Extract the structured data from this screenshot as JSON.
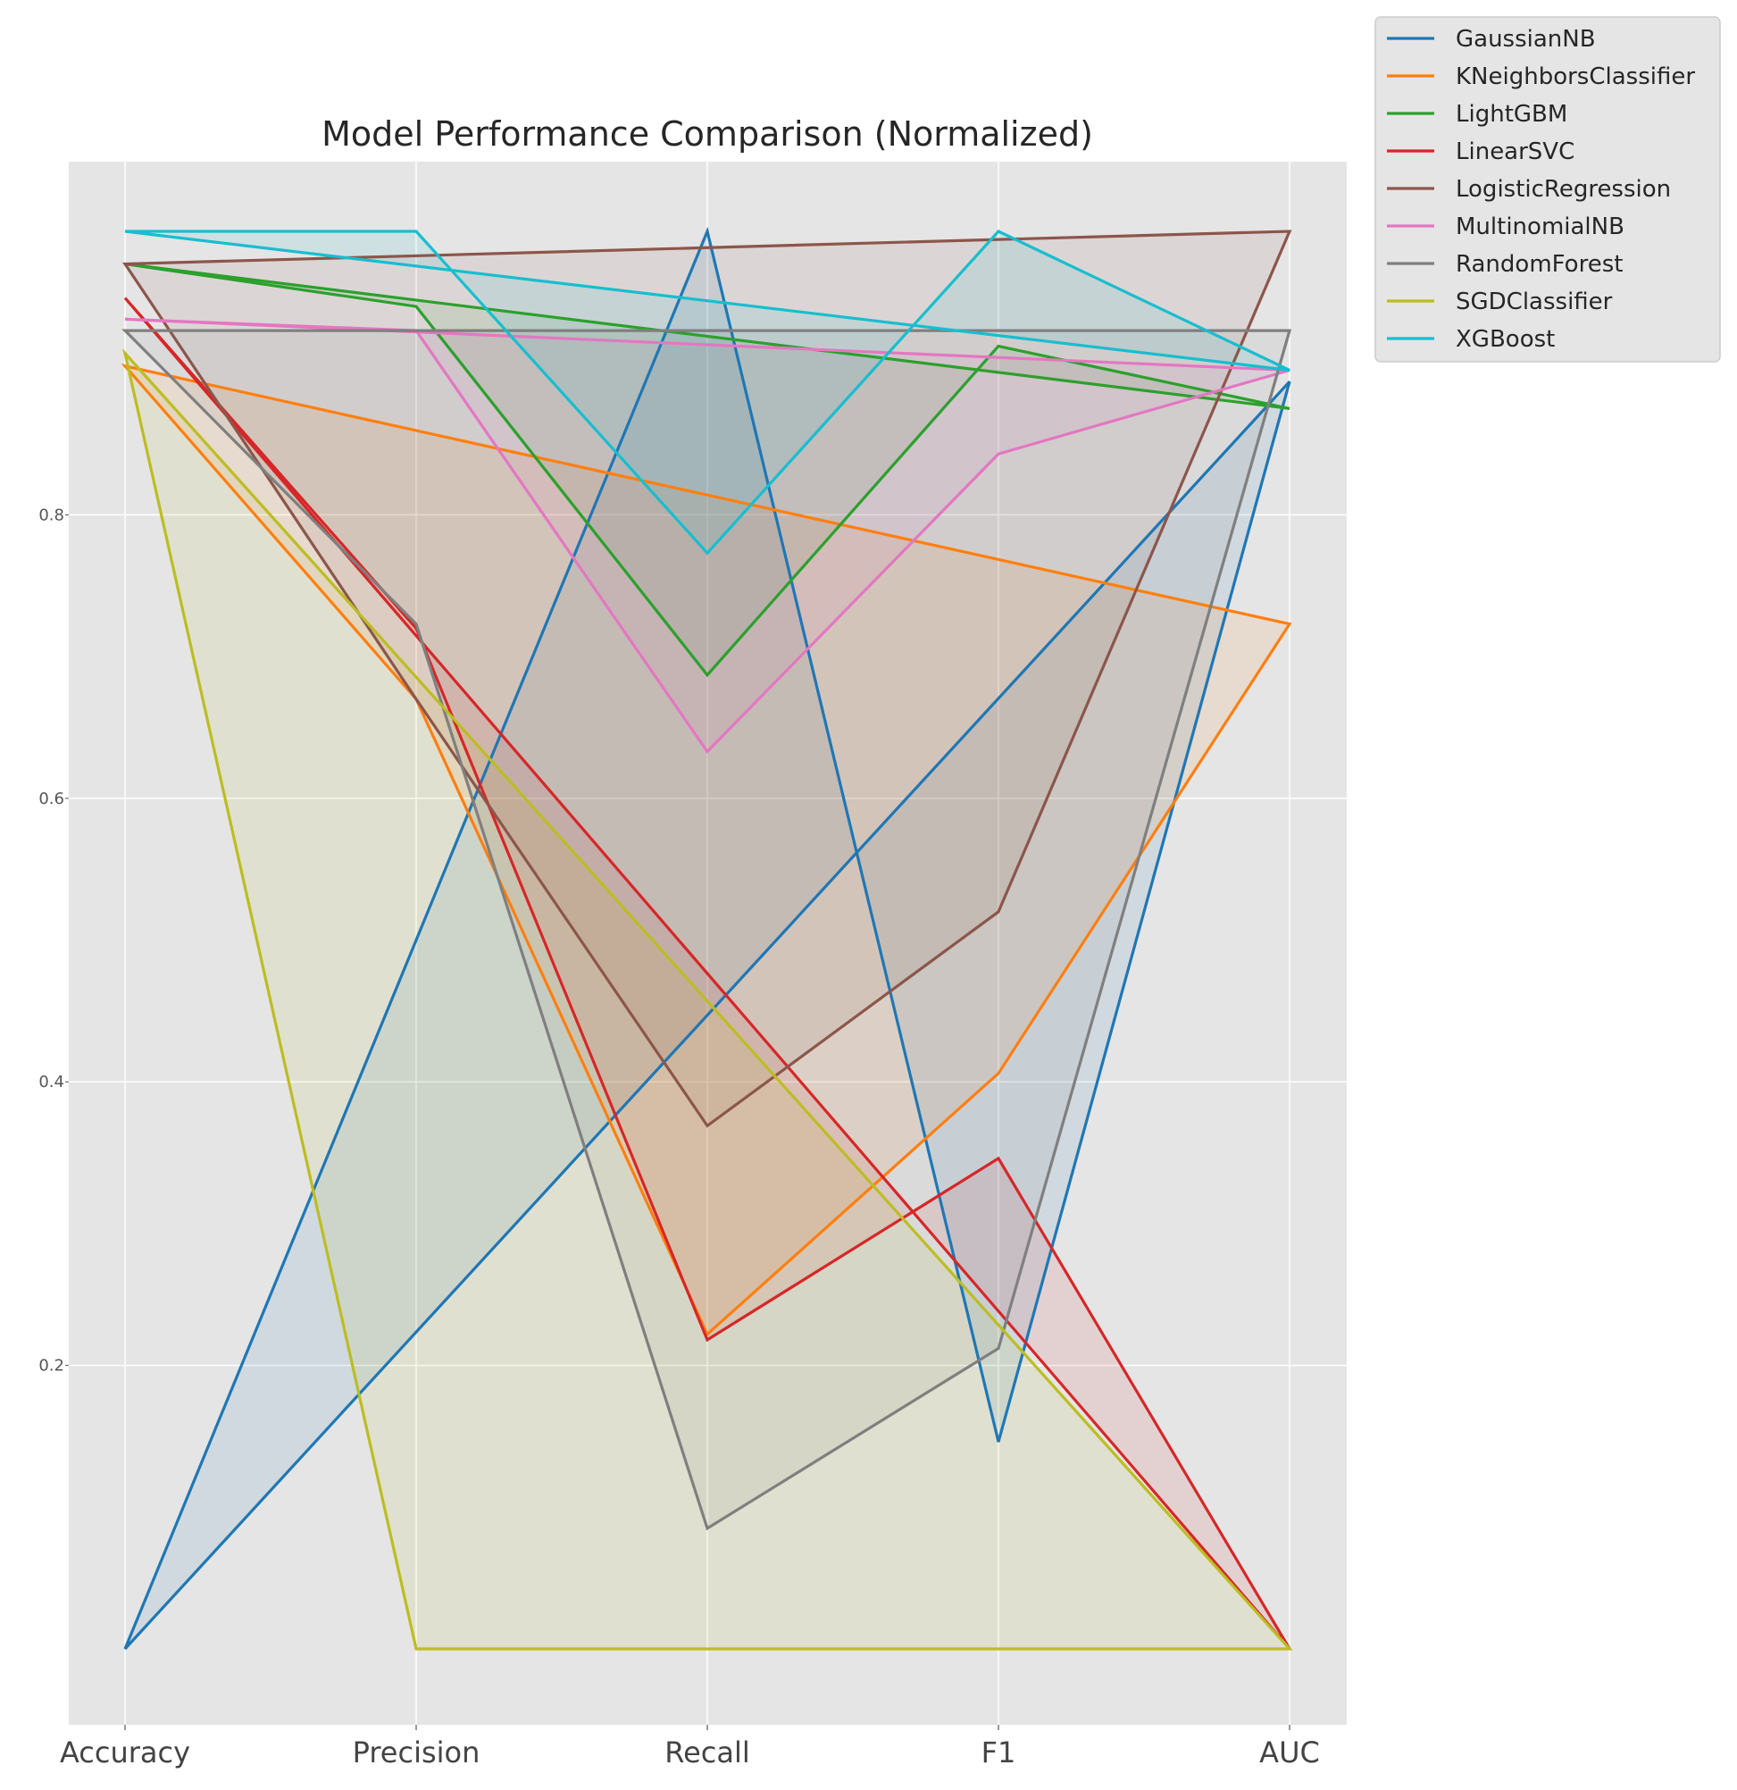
{
  "chart_data": {
    "type": "line",
    "title": "Model Performance Comparison (Normalized)",
    "xlabel": "",
    "ylabel": "",
    "categories": [
      "Accuracy",
      "Precision",
      "Recall",
      "F1",
      "AUC"
    ],
    "yticks": [
      0.2,
      0.4,
      0.6,
      0.8
    ],
    "ylim": [
      -0.05,
      1.05
    ],
    "grid": true,
    "legend_position": "outside-top-right",
    "filled": true,
    "closed_polygons": true,
    "series": [
      {
        "name": "GaussianNB",
        "color": "#1f77b4",
        "values": [
          0.0,
          0.5,
          1.0,
          0.146,
          0.894
        ]
      },
      {
        "name": "KNeighborsClassifier",
        "color": "#ff7f0e",
        "values": [
          0.905,
          0.67,
          0.222,
          0.406,
          0.723
        ]
      },
      {
        "name": "LightGBM",
        "color": "#2ca02c",
        "values": [
          0.977,
          0.947,
          0.687,
          0.919,
          0.875
        ]
      },
      {
        "name": "LinearSVC",
        "color": "#d62728",
        "values": [
          0.953,
          0.72,
          0.218,
          0.346,
          0.0
        ]
      },
      {
        "name": "LogisticRegression",
        "color": "#8c564b",
        "values": [
          0.977,
          0.67,
          0.369,
          0.52,
          1.0
        ]
      },
      {
        "name": "MultinomialNB",
        "color": "#e377c2",
        "values": [
          0.938,
          0.93,
          0.633,
          0.843,
          0.902
        ]
      },
      {
        "name": "RandomForest",
        "color": "#7f7f7f",
        "values": [
          0.93,
          0.723,
          0.085,
          0.212,
          0.93
        ]
      },
      {
        "name": "SGDClassifier",
        "color": "#bcbd22",
        "values": [
          0.914,
          0.0,
          0.0,
          0.0,
          0.0
        ]
      },
      {
        "name": "XGBoost",
        "color": "#17becf",
        "values": [
          1.0,
          1.0,
          0.773,
          1.0,
          0.902
        ]
      }
    ]
  }
}
